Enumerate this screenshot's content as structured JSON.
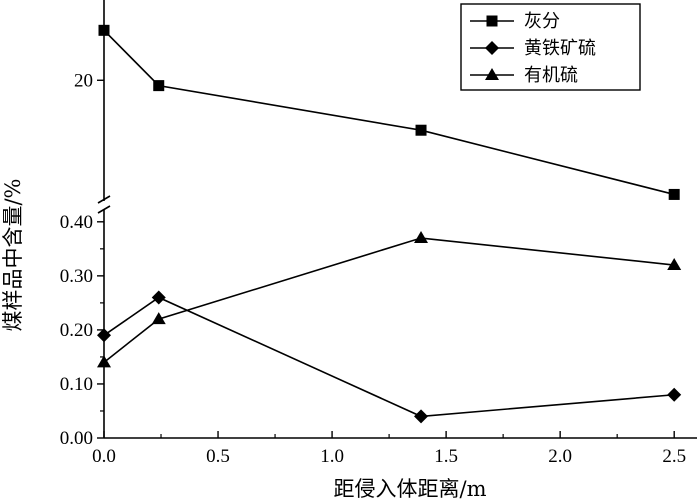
{
  "chart_data": {
    "type": "line",
    "xlabel": "距侵入体距离/m",
    "ylabel": "煤样品中含量/%",
    "xlim": [
      0,
      2.6
    ],
    "x_ticks": [
      "0.0",
      "0.5",
      "1.0",
      "1.5",
      "2.0",
      "2.5"
    ],
    "x_tick_values": [
      0,
      0.5,
      1.0,
      1.5,
      2.0,
      2.5
    ],
    "y_axis_break": true,
    "upper_panel": {
      "ylim": [
        13.4,
        24.5
      ],
      "y_ticks": [
        "20"
      ],
      "y_tick_values": [
        20
      ]
    },
    "lower_panel": {
      "ylim": [
        0,
        0.42
      ],
      "y_ticks": [
        "0.00",
        "0.10",
        "0.20",
        "0.30",
        "0.40"
      ],
      "y_tick_values": [
        0,
        0.1,
        0.2,
        0.3,
        0.4
      ]
    },
    "series": [
      {
        "name": "灰分",
        "marker": "square",
        "panel": "upper",
        "x": [
          0,
          0.24,
          1.39,
          2.5
        ],
        "values": [
          22.8,
          19.7,
          17.2,
          13.6
        ]
      },
      {
        "name": "黄铁矿硫",
        "marker": "diamond",
        "panel": "lower",
        "x": [
          0,
          0.24,
          1.39,
          2.5
        ],
        "values": [
          0.19,
          0.26,
          0.04,
          0.08
        ]
      },
      {
        "name": "有机硫",
        "marker": "triangle",
        "panel": "lower",
        "x": [
          0,
          0.24,
          1.39,
          2.5
        ],
        "values": [
          0.14,
          0.22,
          0.37,
          0.32
        ]
      }
    ],
    "legend_position": "top-right",
    "grid": false
  }
}
